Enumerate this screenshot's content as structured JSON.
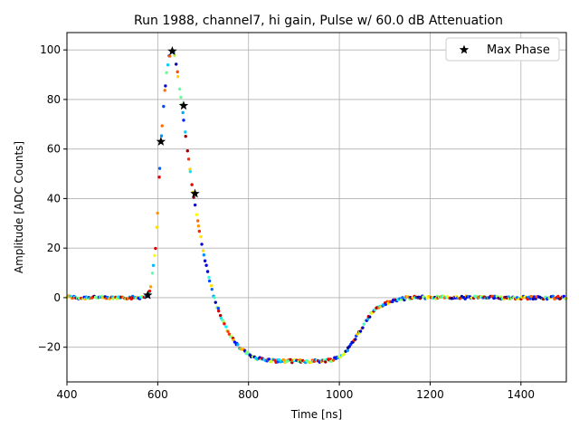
{
  "chart_data": {
    "type": "scatter",
    "title": "Run 1988, channel7, hi gain, Pulse w/ 60.0 dB Attenuation",
    "xlabel": "Time [ns]",
    "ylabel": "Amplitude [ADC Counts]",
    "xlim": [
      400,
      1500
    ],
    "ylim": [
      -34,
      107
    ],
    "xticks": [
      400,
      600,
      800,
      1000,
      1200,
      1400
    ],
    "yticks": [
      -20,
      0,
      20,
      40,
      60,
      80,
      100
    ],
    "grid": true,
    "legend_position": "top-right",
    "colormap": "jet",
    "series": [
      {
        "kind": "pulse-points",
        "points": [
          [
            400,
            0.4
          ],
          [
            430,
            -0.2
          ],
          [
            460,
            0.3
          ],
          [
            490,
            -0.3
          ],
          [
            520,
            0.2
          ],
          [
            550,
            -0.1
          ],
          [
            575,
            0.5
          ],
          [
            585,
            4
          ],
          [
            595,
            20
          ],
          [
            600,
            35
          ],
          [
            605,
            55
          ],
          [
            610,
            70
          ],
          [
            615,
            82
          ],
          [
            620,
            92
          ],
          [
            625,
            97
          ],
          [
            630,
            99.5
          ],
          [
            635,
            99
          ],
          [
            640,
            95
          ],
          [
            645,
            89
          ],
          [
            650,
            82
          ],
          [
            655,
            75
          ],
          [
            660,
            68
          ],
          [
            665,
            60
          ],
          [
            670,
            53
          ],
          [
            675,
            46
          ],
          [
            680,
            40
          ],
          [
            690,
            29
          ],
          [
            700,
            19
          ],
          [
            710,
            10
          ],
          [
            720,
            3
          ],
          [
            730,
            -3
          ],
          [
            740,
            -8
          ],
          [
            750,
            -12
          ],
          [
            760,
            -15.5
          ],
          [
            770,
            -18
          ],
          [
            780,
            -20
          ],
          [
            790,
            -21.5
          ],
          [
            800,
            -23
          ],
          [
            820,
            -24.5
          ],
          [
            840,
            -25.2
          ],
          [
            860,
            -25.5
          ],
          [
            880,
            -25.6
          ],
          [
            900,
            -25.6
          ],
          [
            920,
            -25.6
          ],
          [
            940,
            -25.6
          ],
          [
            960,
            -25.5
          ],
          [
            980,
            -25.2
          ],
          [
            1000,
            -24
          ],
          [
            1010,
            -22.5
          ],
          [
            1020,
            -20.5
          ],
          [
            1030,
            -18
          ],
          [
            1040,
            -15
          ],
          [
            1050,
            -12
          ],
          [
            1060,
            -9
          ],
          [
            1070,
            -6.5
          ],
          [
            1080,
            -4.5
          ],
          [
            1100,
            -2.5
          ],
          [
            1120,
            -1.2
          ],
          [
            1140,
            -0.4
          ],
          [
            1160,
            0
          ],
          [
            1200,
            0.2
          ],
          [
            1250,
            0
          ],
          [
            1300,
            0.1
          ],
          [
            1350,
            0
          ],
          [
            1400,
            0
          ],
          [
            1450,
            0
          ],
          [
            1500,
            0
          ]
        ]
      },
      {
        "name": "Max Phase",
        "kind": "markers",
        "marker": "star",
        "color": "#000000",
        "points": [
          [
            578,
            1
          ],
          [
            607,
            63
          ],
          [
            632,
            99.5
          ],
          [
            657,
            77.5
          ],
          [
            682,
            42
          ]
        ]
      }
    ]
  }
}
